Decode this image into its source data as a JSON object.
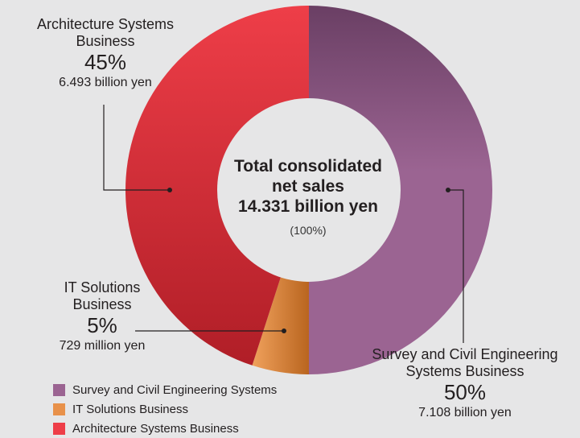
{
  "chart_data": {
    "type": "pie",
    "donut": true,
    "center": {
      "line1": "Total consolidated",
      "line2": "net sales",
      "line3": "14.331 billion yen",
      "sub": "(100%)"
    },
    "slices": [
      {
        "name": "Survey and Civil Engineering Systems",
        "label_line1": "Survey and Civil Engineering",
        "label_line2": "Systems Business",
        "percent": "50%",
        "value": 50,
        "amount": "7.108 billion yen",
        "color": "#9b6492",
        "color_dark": "#6a3f64"
      },
      {
        "name": "IT Solutions Business",
        "label_line1": "IT Solutions",
        "label_line2": "Business",
        "percent": "5%",
        "value": 5,
        "amount": "729 million yen",
        "color": "#e8914a",
        "color_dark": "#b9651f"
      },
      {
        "name": "Architecture Systems Business",
        "label_line1": "Architecture Systems",
        "label_line2": "Business",
        "percent": "45%",
        "value": 45,
        "amount": "6.493 billion yen",
        "color": "#ee3e48",
        "color_dark": "#b01e27"
      }
    ],
    "legend": [
      "Survey and Civil Engineering Systems",
      "IT Solutions Business",
      "Architecture Systems Business"
    ]
  }
}
